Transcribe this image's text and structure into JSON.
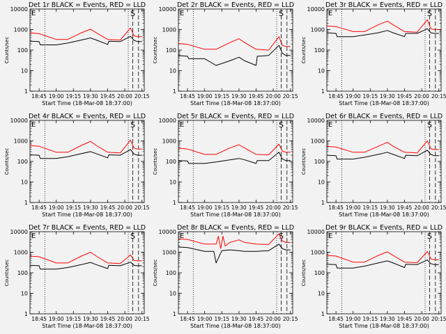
{
  "chart_data": [
    {
      "type": "line",
      "title": "Det 1r BLACK = Events, RED = LLD",
      "ylabel": "Counts/sec",
      "xlabel": "Start Time (18-Mar-08 18:37:00)",
      "y_scale": "log",
      "ylim": [
        1,
        10000
      ],
      "y_ticks": [
        "1",
        "10",
        "100",
        "1000",
        "10000"
      ],
      "x_ticks": [
        "18:45",
        "19:00",
        "19:15",
        "19:30",
        "19:45",
        "20:00",
        "20:15"
      ],
      "corner_labels": [
        "E",
        "S"
      ],
      "series": [
        {
          "color": "#ff0000",
          "x": [
            "18:37",
            "18:45",
            "19:00",
            "19:10",
            "19:22",
            "19:30",
            "19:35",
            "19:45",
            "19:56",
            "20:05",
            "20:08",
            "20:11",
            "20:15"
          ],
          "y": [
            700,
            630,
            330,
            330,
            700,
            1050,
            700,
            330,
            310,
            1200,
            500,
            450,
            450
          ]
        },
        {
          "color": "#000000",
          "x": [
            "18:37",
            "18:45",
            "18:46",
            "19:00",
            "19:10",
            "19:22",
            "19:30",
            "19:35",
            "19:45",
            "19:46",
            "19:56",
            "20:05",
            "20:08",
            "20:11",
            "20:15"
          ],
          "y": [
            270,
            260,
            180,
            180,
            220,
            310,
            390,
            310,
            190,
            270,
            260,
            470,
            300,
            260,
            260
          ]
        }
      ]
    },
    {
      "type": "line",
      "title": "Det 2r BLACK = Events, RED = LLD",
      "ylabel": "Counts/sec",
      "xlabel": "Start Time (18-Mar-08 18:37:00)",
      "y_scale": "log",
      "ylim": [
        1,
        10000
      ],
      "y_ticks": [
        "1",
        "10",
        "100",
        "1000",
        "10000"
      ],
      "x_ticks": [
        "18:45",
        "19:00",
        "19:15",
        "19:30",
        "19:45",
        "20:00",
        "20:15"
      ],
      "corner_labels": [
        "E",
        "S"
      ],
      "series": [
        {
          "color": "#ff0000",
          "x": [
            "18:37",
            "18:45",
            "19:00",
            "19:10",
            "19:22",
            "19:30",
            "19:35",
            "19:45",
            "19:56",
            "20:05",
            "20:08",
            "20:11",
            "20:15"
          ],
          "y": [
            210,
            190,
            110,
            110,
            230,
            360,
            230,
            110,
            100,
            450,
            170,
            150,
            150
          ]
        },
        {
          "color": "#000000",
          "x": [
            "18:37",
            "18:45",
            "18:46",
            "19:00",
            "19:10",
            "19:22",
            "19:30",
            "19:35",
            "19:45",
            "19:46",
            "19:56",
            "20:05",
            "20:08",
            "20:11",
            "20:15"
          ],
          "y": [
            55,
            50,
            38,
            38,
            18,
            30,
            45,
            30,
            18,
            50,
            55,
            170,
            70,
            55,
            55
          ]
        }
      ]
    },
    {
      "type": "line",
      "title": "Det 3r BLACK = Events, RED = LLD",
      "ylabel": "Counts/sec",
      "xlabel": "Start Time (18-Mar-08 18:37:00)",
      "y_scale": "log",
      "ylim": [
        1,
        10000
      ],
      "y_ticks": [
        "1",
        "10",
        "100",
        "1000",
        "10000"
      ],
      "x_ticks": [
        "18:45",
        "19:00",
        "19:15",
        "19:30",
        "19:45",
        "20:00",
        "20:15"
      ],
      "corner_labels": [
        "E",
        "S"
      ],
      "series": [
        {
          "color": "#ff0000",
          "x": [
            "18:37",
            "18:45",
            "19:00",
            "19:10",
            "19:22",
            "19:30",
            "19:35",
            "19:45",
            "19:56",
            "20:05",
            "20:08",
            "20:11",
            "20:15"
          ],
          "y": [
            1500,
            1400,
            800,
            800,
            1700,
            2600,
            1700,
            800,
            750,
            3000,
            1100,
            1000,
            1000
          ]
        },
        {
          "color": "#000000",
          "x": [
            "18:37",
            "18:45",
            "18:46",
            "19:00",
            "19:10",
            "19:22",
            "19:30",
            "19:35",
            "19:45",
            "19:46",
            "19:56",
            "20:05",
            "20:08",
            "20:11",
            "20:15"
          ],
          "y": [
            700,
            650,
            450,
            450,
            550,
            700,
            900,
            700,
            450,
            650,
            650,
            1100,
            700,
            650,
            650
          ]
        }
      ]
    },
    {
      "type": "line",
      "title": "Det 4r BLACK = Events, RED = LLD",
      "ylabel": "Counts/sec",
      "xlabel": "Start Time (18-Mar-08 18:37:00)",
      "y_scale": "log",
      "ylim": [
        1,
        10000
      ],
      "y_ticks": [
        "1",
        "10",
        "100",
        "1000",
        "10000"
      ],
      "x_ticks": [
        "18:45",
        "19:00",
        "19:15",
        "19:30",
        "19:45",
        "20:00",
        "20:15"
      ],
      "corner_labels": [
        "E",
        "S"
      ],
      "series": [
        {
          "color": "#ff0000",
          "x": [
            "18:37",
            "18:45",
            "19:00",
            "19:10",
            "19:22",
            "19:30",
            "19:35",
            "19:45",
            "19:56",
            "20:05",
            "20:08",
            "20:11",
            "20:15"
          ],
          "y": [
            600,
            550,
            280,
            280,
            600,
            950,
            600,
            280,
            260,
            1100,
            450,
            400,
            400
          ]
        },
        {
          "color": "#000000",
          "x": [
            "18:37",
            "18:45",
            "18:46",
            "19:00",
            "19:10",
            "19:22",
            "19:30",
            "19:35",
            "19:45",
            "19:46",
            "19:56",
            "20:05",
            "20:08",
            "20:11",
            "20:15"
          ],
          "y": [
            210,
            200,
            140,
            140,
            170,
            240,
            300,
            240,
            150,
            210,
            200,
            380,
            230,
            200,
            200
          ]
        }
      ]
    },
    {
      "type": "line",
      "title": "Det 5r BLACK = Events, RED = LLD",
      "ylabel": "Counts/sec",
      "xlabel": "Start Time (18-Mar-08 18:37:00)",
      "y_scale": "log",
      "ylim": [
        1,
        10000
      ],
      "y_ticks": [
        "1",
        "10",
        "100",
        "1000",
        "10000"
      ],
      "x_ticks": [
        "18:45",
        "19:00",
        "19:15",
        "19:30",
        "19:45",
        "20:00",
        "20:15"
      ],
      "corner_labels": [
        "E",
        "S"
      ],
      "series": [
        {
          "color": "#ff0000",
          "x": [
            "18:37",
            "18:45",
            "19:00",
            "19:10",
            "19:22",
            "19:30",
            "19:35",
            "19:45",
            "19:56",
            "20:05",
            "20:08",
            "20:11",
            "20:15"
          ],
          "y": [
            450,
            400,
            220,
            220,
            450,
            650,
            450,
            220,
            210,
            700,
            320,
            280,
            280
          ]
        },
        {
          "color": "#000000",
          "x": [
            "18:37",
            "18:45",
            "18:46",
            "19:00",
            "19:10",
            "19:22",
            "19:30",
            "19:35",
            "19:45",
            "19:46",
            "19:56",
            "20:05",
            "20:08",
            "20:11",
            "20:15"
          ],
          "y": [
            110,
            105,
            80,
            80,
            95,
            120,
            140,
            120,
            80,
            110,
            110,
            280,
            130,
            110,
            110
          ]
        }
      ]
    },
    {
      "type": "line",
      "title": "Det 6r BLACK = Events, RED = LLD",
      "ylabel": "Counts/sec",
      "xlabel": "Start Time (18-Mar-08 18:37:00)",
      "y_scale": "log",
      "ylim": [
        1,
        10000
      ],
      "y_ticks": [
        "1",
        "10",
        "100",
        "1000",
        "10000"
      ],
      "x_ticks": [
        "18:45",
        "19:00",
        "19:15",
        "19:30",
        "19:45",
        "20:00",
        "20:15"
      ],
      "corner_labels": [
        "E",
        "S"
      ],
      "series": [
        {
          "color": "#ff0000",
          "x": [
            "18:37",
            "18:45",
            "19:00",
            "19:10",
            "19:22",
            "19:30",
            "19:35",
            "19:45",
            "19:56",
            "20:05",
            "20:08",
            "20:11",
            "20:15"
          ],
          "y": [
            550,
            500,
            280,
            280,
            550,
            850,
            550,
            280,
            260,
            1000,
            420,
            380,
            380
          ]
        },
        {
          "color": "#000000",
          "x": [
            "18:37",
            "18:45",
            "18:46",
            "19:00",
            "19:10",
            "19:22",
            "19:30",
            "19:35",
            "19:45",
            "19:46",
            "19:56",
            "20:05",
            "20:08",
            "20:11",
            "20:15"
          ],
          "y": [
            200,
            190,
            130,
            130,
            160,
            220,
            280,
            220,
            140,
            200,
            190,
            350,
            220,
            190,
            190
          ]
        }
      ]
    },
    {
      "type": "line",
      "title": "Det 7r BLACK = Events, RED = LLD",
      "ylabel": "Counts/sec",
      "xlabel": "Start Time (18-Mar-08 18:37:00)",
      "y_scale": "log",
      "ylim": [
        1,
        10000
      ],
      "y_ticks": [
        "1",
        "10",
        "100",
        "1000",
        "10000"
      ],
      "x_ticks": [
        "18:45",
        "19:00",
        "19:15",
        "19:30",
        "19:45",
        "20:00",
        "20:15"
      ],
      "corner_labels": [
        "E",
        "S"
      ],
      "series": [
        {
          "color": "#ff0000",
          "x": [
            "18:37",
            "18:45",
            "19:00",
            "19:10",
            "19:22",
            "19:30",
            "19:35",
            "19:45",
            "19:56",
            "20:05",
            "20:08",
            "20:11",
            "20:15"
          ],
          "y": [
            650,
            600,
            300,
            300,
            650,
            1000,
            650,
            300,
            280,
            750,
            400,
            380,
            380
          ]
        },
        {
          "color": "#000000",
          "x": [
            "18:37",
            "18:45",
            "18:46",
            "19:00",
            "19:10",
            "19:22",
            "19:30",
            "19:35",
            "19:45",
            "19:46",
            "19:56",
            "20:05",
            "20:08",
            "20:11",
            "20:15"
          ],
          "y": [
            230,
            220,
            150,
            150,
            180,
            250,
            320,
            250,
            160,
            230,
            220,
            330,
            230,
            220,
            220
          ]
        }
      ]
    },
    {
      "type": "line",
      "title": "Det 8r BLACK = Events, RED = LLD",
      "ylabel": "Counts/sec",
      "xlabel": "Start Time (18-Mar-08 18:37:00)",
      "y_scale": "log",
      "ylim": [
        1,
        10000
      ],
      "y_ticks": [
        "1",
        "10",
        "100",
        "1000",
        "10000"
      ],
      "x_ticks": [
        "18:45",
        "19:00",
        "19:15",
        "19:30",
        "19:45",
        "20:00",
        "20:15"
      ],
      "corner_labels": [
        "E",
        "S"
      ],
      "series": [
        {
          "color": "#ff0000",
          "x": [
            "18:37",
            "18:45",
            "19:00",
            "19:10",
            "19:12",
            "19:14",
            "19:16",
            "19:18",
            "19:22",
            "19:30",
            "19:35",
            "19:45",
            "19:56",
            "20:05",
            "20:08",
            "20:11",
            "20:15"
          ],
          "y": [
            4500,
            4200,
            2500,
            2500,
            6000,
            1500,
            6000,
            2000,
            3000,
            4000,
            3000,
            2500,
            2400,
            8000,
            3500,
            3000,
            3000
          ]
        },
        {
          "color": "#000000",
          "x": [
            "18:37",
            "18:45",
            "19:00",
            "19:08",
            "19:10",
            "19:15",
            "19:22",
            "19:30",
            "19:35",
            "19:45",
            "19:56",
            "20:05",
            "20:08",
            "20:11",
            "20:15"
          ],
          "y": [
            1800,
            1700,
            1100,
            1100,
            300,
            1200,
            1300,
            1200,
            1100,
            1100,
            1200,
            2500,
            1500,
            1300,
            1300
          ]
        }
      ]
    },
    {
      "type": "line",
      "title": "Det 9r BLACK = Events, RED = LLD",
      "ylabel": "Counts/sec",
      "xlabel": "Start Time (18-Mar-08 18:37:00)",
      "y_scale": "log",
      "ylim": [
        1,
        10000
      ],
      "y_ticks": [
        "1",
        "10",
        "100",
        "1000",
        "10000"
      ],
      "x_ticks": [
        "18:45",
        "19:00",
        "19:15",
        "19:30",
        "19:45",
        "20:00",
        "20:15"
      ],
      "corner_labels": [
        "E",
        "S"
      ],
      "series": [
        {
          "color": "#ff0000",
          "x": [
            "18:37",
            "18:45",
            "19:00",
            "19:10",
            "19:22",
            "19:30",
            "19:35",
            "19:45",
            "19:56",
            "20:05",
            "20:08",
            "20:11",
            "20:15"
          ],
          "y": [
            700,
            650,
            330,
            330,
            700,
            1050,
            700,
            330,
            310,
            1100,
            480,
            430,
            430
          ]
        },
        {
          "color": "#000000",
          "x": [
            "18:37",
            "18:45",
            "18:46",
            "19:00",
            "19:10",
            "19:22",
            "19:30",
            "19:35",
            "19:45",
            "19:46",
            "19:56",
            "20:05",
            "20:08",
            "20:11",
            "20:15"
          ],
          "y": [
            260,
            250,
            170,
            170,
            210,
            300,
            380,
            300,
            180,
            260,
            250,
            420,
            280,
            250,
            250
          ]
        }
      ]
    }
  ]
}
